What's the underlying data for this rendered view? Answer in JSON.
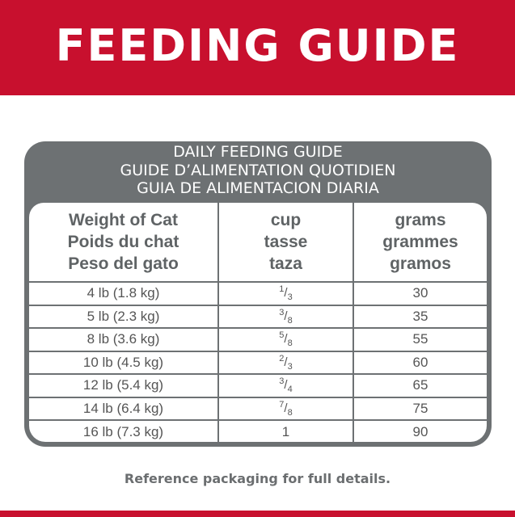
{
  "banner": {
    "title": "FEEDING GUIDE"
  },
  "table": {
    "titles": [
      "DAILY FEEDING GUIDE",
      "GUIDE D’ALIMENTATION QUOTIDIEN",
      "GUIA DE ALIMENTACION DIARIA"
    ],
    "headers": [
      [
        "Weight of Cat",
        "Poids du chat",
        "Peso del gato"
      ],
      [
        "cup",
        "tasse",
        "taza"
      ],
      [
        "grams",
        "grammes",
        "gramos"
      ]
    ],
    "rows": [
      {
        "weight": "4 lb (1.8 kg)",
        "cup_num": "1",
        "cup_den": "3",
        "grams": "30"
      },
      {
        "weight": "5 lb (2.3 kg)",
        "cup_num": "3",
        "cup_den": "8",
        "grams": "35"
      },
      {
        "weight": "8 lb (3.6 kg)",
        "cup_num": "5",
        "cup_den": "8",
        "grams": "55"
      },
      {
        "weight": "10 lb (4.5 kg)",
        "cup_num": "2",
        "cup_den": "3",
        "grams": "60"
      },
      {
        "weight": "12 lb (5.4 kg)",
        "cup_num": "3",
        "cup_den": "4",
        "grams": "65"
      },
      {
        "weight": "14 lb (6.4 kg)",
        "cup_num": "7",
        "cup_den": "8",
        "grams": "75"
      },
      {
        "weight": "16 lb (7.3 kg)",
        "cup": "1",
        "grams": "90"
      }
    ]
  },
  "note": "Reference packaging for full details.",
  "colors": {
    "brand_red": "#c8102e",
    "table_gray": "#6d7173"
  }
}
